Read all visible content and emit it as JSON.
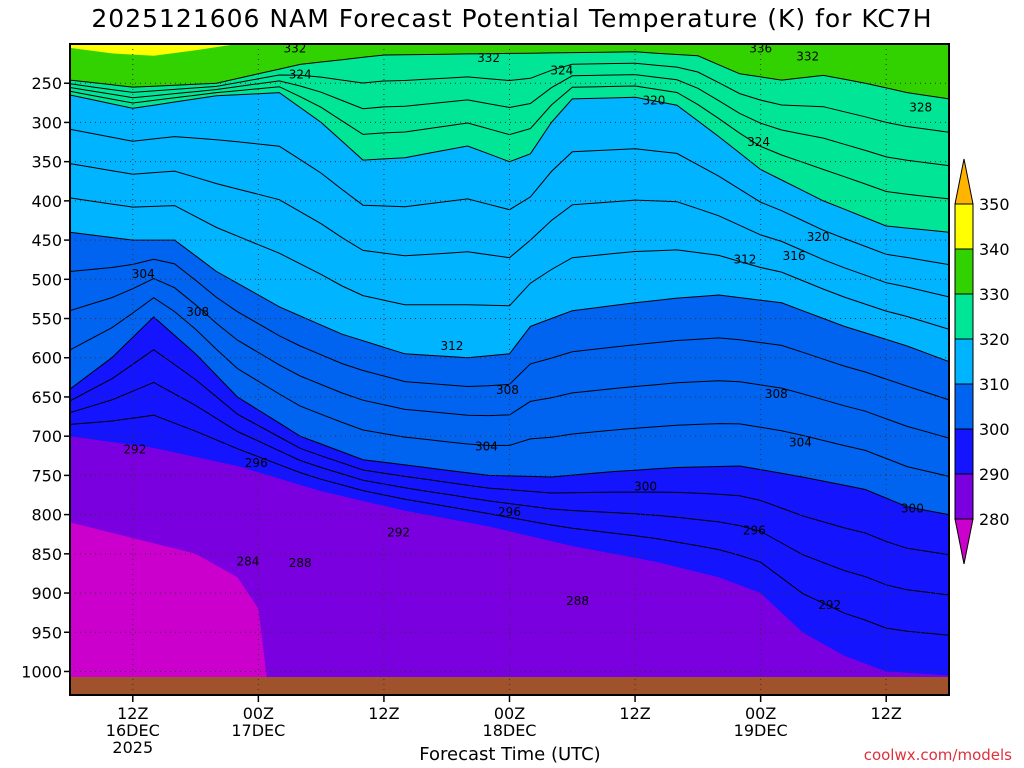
{
  "chart_data": {
    "type": "heatmap",
    "title": "2025121606 NAM Forecast Potential Temperature (K) for KC7H",
    "xlabel": "Forecast Time (UTC)",
    "ylabel": "",
    "credit": "coolwx.com/models",
    "x_ticks": [
      {
        "hour": 12,
        "lines": [
          "12Z",
          "16DEC",
          "2025"
        ]
      },
      {
        "hour": 24,
        "lines": [
          "00Z",
          "17DEC"
        ]
      },
      {
        "hour": 36,
        "lines": [
          "12Z"
        ]
      },
      {
        "hour": 48,
        "lines": [
          "00Z",
          "18DEC"
        ]
      },
      {
        "hour": 60,
        "lines": [
          "12Z"
        ]
      },
      {
        "hour": 72,
        "lines": [
          "00Z",
          "19DEC"
        ]
      },
      {
        "hour": 84,
        "lines": [
          "12Z"
        ]
      }
    ],
    "xlim": [
      6,
      90
    ],
    "y_ticks": [
      250,
      300,
      350,
      400,
      450,
      500,
      550,
      600,
      650,
      700,
      750,
      800,
      850,
      900,
      950,
      1000
    ],
    "ylim": [
      1030,
      200
    ],
    "colorbar": {
      "levels": [
        280,
        290,
        300,
        310,
        320,
        330,
        340,
        350
      ],
      "colors": [
        "#cc00cc",
        "#7a00e0",
        "#1414ff",
        "#0064f0",
        "#00b4ff",
        "#00e696",
        "#32d200",
        "#ffff00",
        "#ffb400"
      ]
    },
    "contour_labels": [
      {
        "text": "332",
        "hour": 27.5,
        "p": 206
      },
      {
        "text": "336",
        "hour": 72,
        "p": 206
      },
      {
        "text": "332",
        "hour": 46,
        "p": 218
      },
      {
        "text": "332",
        "hour": 76.5,
        "p": 216
      },
      {
        "text": "324",
        "hour": 28,
        "p": 239
      },
      {
        "text": "324",
        "hour": 53,
        "p": 234
      },
      {
        "text": "320",
        "hour": 61.8,
        "p": 272
      },
      {
        "text": "328",
        "hour": 87.3,
        "p": 281
      },
      {
        "text": "324",
        "hour": 71.8,
        "p": 325
      },
      {
        "text": "320",
        "hour": 77.5,
        "p": 446
      },
      {
        "text": "316",
        "hour": 75.2,
        "p": 470
      },
      {
        "text": "312",
        "hour": 70.5,
        "p": 475
      },
      {
        "text": "304",
        "hour": 13,
        "p": 493
      },
      {
        "text": "308",
        "hour": 18.2,
        "p": 542
      },
      {
        "text": "312",
        "hour": 42.5,
        "p": 585
      },
      {
        "text": "308",
        "hour": 47.8,
        "p": 641
      },
      {
        "text": "308",
        "hour": 73.5,
        "p": 646
      },
      {
        "text": "304",
        "hour": 45.8,
        "p": 713
      },
      {
        "text": "304",
        "hour": 75.8,
        "p": 708
      },
      {
        "text": "292",
        "hour": 12.2,
        "p": 717
      },
      {
        "text": "296",
        "hour": 23.8,
        "p": 734
      },
      {
        "text": "300",
        "hour": 61,
        "p": 764
      },
      {
        "text": "296",
        "hour": 48,
        "p": 797
      },
      {
        "text": "300",
        "hour": 86.5,
        "p": 792
      },
      {
        "text": "292",
        "hour": 37.4,
        "p": 823
      },
      {
        "text": "296",
        "hour": 71.4,
        "p": 820
      },
      {
        "text": "284",
        "hour": 23,
        "p": 860
      },
      {
        "text": "288",
        "hour": 28,
        "p": 862
      },
      {
        "text": "288",
        "hour": 54.5,
        "p": 910
      },
      {
        "text": "292",
        "hour": 78.6,
        "p": 915
      }
    ]
  }
}
